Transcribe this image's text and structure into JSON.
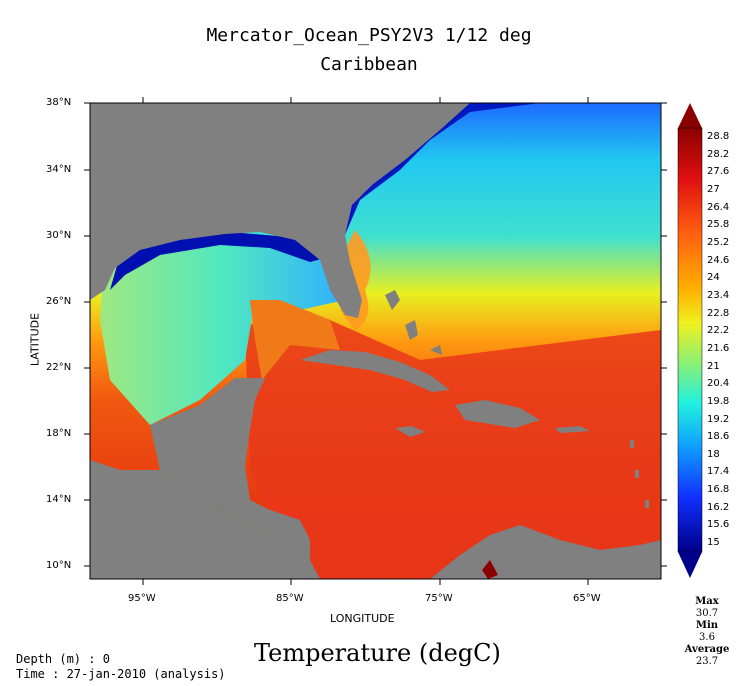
{
  "header": {
    "title": "Mercator_Ocean_PSY2V3 1/12 deg",
    "subtitle": "Caribbean"
  },
  "map": {
    "lat_ticks": [
      "38°N",
      "34°N",
      "30°N",
      "26°N",
      "22°N",
      "18°N",
      "14°N",
      "10°N"
    ],
    "lon_ticks": [
      "95°W",
      "85°W",
      "75°W",
      "65°W"
    ],
    "ylabel": "LATITUDE",
    "xlabel": "LONGITUDE"
  },
  "colorbar": {
    "labels": [
      "28.8",
      "28.2",
      "27.6",
      "27",
      "26.4",
      "25.8",
      "25.2",
      "24.6",
      "24",
      "23.4",
      "22.8",
      "22.2",
      "21.6",
      "21",
      "20.4",
      "19.8",
      "19.2",
      "18.6",
      "18",
      "17.4",
      "16.8",
      "16.2",
      "15.6",
      "15"
    ],
    "stats": {
      "max_label": "Max",
      "max_value": "30.7",
      "min_label": "Min",
      "min_value": "3.6",
      "avg_label": "Average",
      "avg_value": "23.7"
    }
  },
  "footer": {
    "variable": "Temperature (degC)",
    "depth": "Depth (m) : 0",
    "time": "Time : 27-jan-2010 (analysis)"
  },
  "colors": {
    "land": "#808080",
    "ocean_warm": "#e8301a",
    "ocean_cool": "#1aa8ff",
    "cold": "#00009a"
  }
}
